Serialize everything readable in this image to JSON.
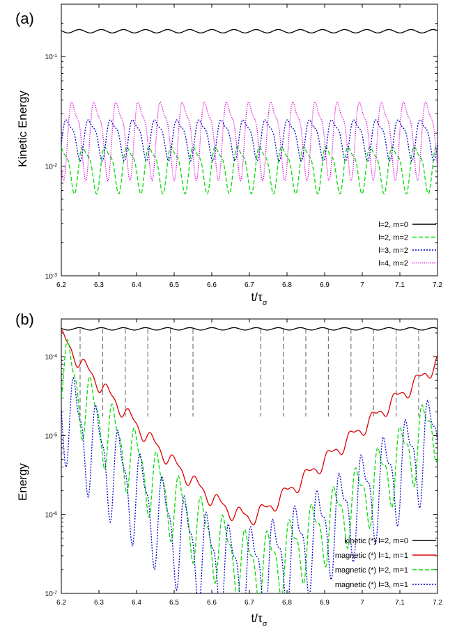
{
  "chart_data": [
    {
      "panel_label": "(a)",
      "type": "line",
      "ylabel": "Kinetic Energy",
      "xlabel": "t/τ",
      "xlabel_sub": "σ",
      "xlim": [
        6.2,
        7.2
      ],
      "ylim": [
        0.001,
        0.3
      ],
      "yscale": "log",
      "x_ticks": [
        {
          "v": 6.2,
          "label": "6.2"
        },
        {
          "v": 6.3,
          "label": "6.3"
        },
        {
          "v": 6.4,
          "label": "6.4"
        },
        {
          "v": 6.5,
          "label": "6.5"
        },
        {
          "v": 6.6,
          "label": "6.6"
        },
        {
          "v": 6.7,
          "label": "6.7"
        },
        {
          "v": 6.8,
          "label": "6.8"
        },
        {
          "v": 6.9,
          "label": "6.9"
        },
        {
          "v": 7.0,
          "label": "7"
        },
        {
          "v": 7.1,
          "label": "7.1"
        },
        {
          "v": 7.2,
          "label": "7.2"
        }
      ],
      "y_ticks": [
        {
          "v": 0.1,
          "base": "10",
          "exp": "-1"
        },
        {
          "v": 0.01,
          "base": "10",
          "exp": "-2"
        },
        {
          "v": 0.001,
          "base": "10",
          "exp": "-3"
        }
      ],
      "legend_position": "bottom-right",
      "series": [
        {
          "name": "l=2, m=0",
          "color": "#000000",
          "dash": "solid",
          "model": {
            "kind": "osc",
            "base": 0.17,
            "amp": 0.035,
            "period": 0.0588,
            "phase": 0.0
          }
        },
        {
          "name": "l=2, m=2",
          "color": "#00dd00",
          "dash": "dashed",
          "model": {
            "kind": "osc2",
            "lo": 0.0055,
            "hi": 0.018,
            "period": 0.0588,
            "phase": 0.015
          }
        },
        {
          "name": "l=3, m=2",
          "color": "#0000cc",
          "dash": "dotted",
          "model": {
            "kind": "osc2",
            "lo": 0.011,
            "hi": 0.031,
            "period": 0.0588,
            "phase": 0.03
          }
        },
        {
          "name": "l=4, m=2",
          "color": "#dd00dd",
          "dash": "dotted-fine",
          "model": {
            "kind": "osc2",
            "lo": 0.0072,
            "hi": 0.052,
            "period": 0.0588,
            "phase": 0.045
          }
        }
      ]
    },
    {
      "panel_label": "(b)",
      "type": "line",
      "ylabel": "Energy",
      "xlabel": "t/τ",
      "xlabel_sub": "σ",
      "xlim": [
        6.2,
        7.2
      ],
      "ylim": [
        1e-07,
        0.0003
      ],
      "yscale": "log",
      "x_ticks": [
        {
          "v": 6.2,
          "label": "6.2"
        },
        {
          "v": 6.3,
          "label": "6.3"
        },
        {
          "v": 6.4,
          "label": "6.4"
        },
        {
          "v": 6.5,
          "label": "6.5"
        },
        {
          "v": 6.6,
          "label": "6.6"
        },
        {
          "v": 6.7,
          "label": "6.7"
        },
        {
          "v": 6.8,
          "label": "6.8"
        },
        {
          "v": 6.9,
          "label": "6.9"
        },
        {
          "v": 7.0,
          "label": "7"
        },
        {
          "v": 7.1,
          "label": "7.1"
        },
        {
          "v": 7.2,
          "label": "7.2"
        }
      ],
      "y_ticks": [
        {
          "v": 0.0001,
          "base": "10",
          "exp": "-4"
        },
        {
          "v": 1e-05,
          "base": "10",
          "exp": "-5"
        },
        {
          "v": 1e-06,
          "base": "10",
          "exp": "-6"
        },
        {
          "v": 1e-07,
          "base": "10",
          "exp": "-7"
        }
      ],
      "vertical_markers": [
        6.25,
        6.31,
        6.37,
        6.43,
        6.49,
        6.55,
        6.73,
        6.79,
        6.85,
        6.91,
        6.97,
        7.03,
        7.09,
        7.15
      ],
      "legend_position": "bottom-right",
      "series": [
        {
          "name": "kinetic (*) l=2, m=0",
          "color": "#000000",
          "dash": "solid",
          "model": {
            "kind": "osc",
            "base": 0.000225,
            "amp": 0.035,
            "period": 0.0588,
            "phase": 0.0
          }
        },
        {
          "name": "magnetic (*) l=1, m=1",
          "color": "#dd0000",
          "dash": "solid",
          "points": [
            [
              6.2,
              0.00018
            ],
            [
              6.25,
              8.5e-05
            ],
            [
              6.3,
              4.6e-05
            ],
            [
              6.35,
              2.5e-05
            ],
            [
              6.4,
              1.35e-05
            ],
            [
              6.45,
              7.6e-06
            ],
            [
              6.5,
              4.4e-06
            ],
            [
              6.55,
              2.6e-06
            ],
            [
              6.6,
              1.6e-06
            ],
            [
              6.65,
              1.1e-06
            ],
            [
              6.7,
              9e-07
            ],
            [
              6.75,
              1.2e-06
            ],
            [
              6.8,
              1.9e-06
            ],
            [
              6.85,
              3e-06
            ],
            [
              6.9,
              4.8e-06
            ],
            [
              6.95,
              7.8e-06
            ],
            [
              7.0,
              1.25e-05
            ],
            [
              7.05,
              2e-05
            ],
            [
              7.1,
              3.2e-05
            ],
            [
              7.15,
              5e-05
            ],
            [
              7.2,
              8.5e-05
            ]
          ],
          "wiggle": {
            "amp": 0.12,
            "period": 0.0588,
            "phase": 0.02
          }
        },
        {
          "name": "magnetic (*) l=2, m=1",
          "color": "#00dd00",
          "dash": "dashed",
          "points": [
            [
              6.2,
              9e-05
            ],
            [
              6.25,
              3.2e-05
            ],
            [
              6.3,
              1.5e-05
            ],
            [
              6.35,
              8e-06
            ],
            [
              6.4,
              4.5e-06
            ],
            [
              6.45,
              2.5e-06
            ],
            [
              6.5,
              1.35e-06
            ],
            [
              6.55,
              8e-07
            ],
            [
              6.6,
              4.8e-07
            ],
            [
              6.65,
              3.2e-07
            ],
            [
              6.7,
              2.3e-07
            ],
            [
              6.75,
              2.4e-07
            ],
            [
              6.8,
              3.2e-07
            ],
            [
              6.85,
              4.6e-07
            ],
            [
              6.9,
              7e-07
            ],
            [
              6.95,
              1.1e-06
            ],
            [
              7.0,
              1.8e-06
            ],
            [
              7.05,
              3e-06
            ],
            [
              7.1,
              5e-06
            ],
            [
              7.15,
              8.5e-06
            ],
            [
              7.2,
              1.6e-05
            ]
          ],
          "wiggle": {
            "amp": 0.55,
            "period": 0.0588,
            "phase": 0.035
          }
        },
        {
          "name": "magnetic (*) l=3, m=1",
          "color": "#0000cc",
          "dash": "dotted",
          "points": [
            [
              6.2,
              2.5e-05
            ],
            [
              6.25,
              1.1e-05
            ],
            [
              6.3,
              6e-06
            ],
            [
              6.35,
              3.2e-06
            ],
            [
              6.4,
              1.8e-06
            ],
            [
              6.45,
              1e-06
            ],
            [
              6.5,
              6e-07
            ],
            [
              6.55,
              3.8e-07
            ],
            [
              6.6,
              2.6e-07
            ],
            [
              6.65,
              2e-07
            ],
            [
              6.7,
              1.9e-07
            ],
            [
              6.75,
              2.2e-07
            ],
            [
              6.8,
              3e-07
            ],
            [
              6.85,
              4.4e-07
            ],
            [
              6.9,
              6.6e-07
            ],
            [
              6.95,
              1e-06
            ],
            [
              7.0,
              1.6e-06
            ],
            [
              7.05,
              2.5e-06
            ],
            [
              7.1,
              3.8e-06
            ],
            [
              7.15,
              6e-06
            ],
            [
              7.2,
              1e-05
            ]
          ],
          "wiggle": {
            "amp": 0.75,
            "period": 0.0588,
            "phase": 0.05
          }
        }
      ]
    }
  ]
}
